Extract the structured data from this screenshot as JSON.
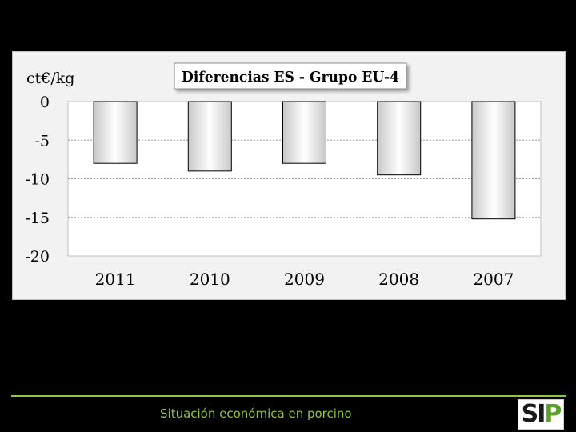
{
  "chart_data": {
    "type": "bar",
    "title": "Diferencias ES - Grupo EU-4",
    "ylabel": "ct€/kg",
    "categories": [
      "2011",
      "2010",
      "2009",
      "2008",
      "2007"
    ],
    "values": [
      -8,
      -9,
      -8,
      -9.5,
      -15.2
    ],
    "ylim": [
      -20,
      0
    ],
    "yticks": [
      "0",
      "-5",
      "-10",
      "-15",
      "-20"
    ],
    "grid": true
  },
  "footer": {
    "text": "Situación económica en porcino",
    "logo_text": "SIP"
  },
  "colors": {
    "background": "#000000",
    "panel": "#f2f2f2",
    "accent": "#8cc63f",
    "logo_green": "#5aa02c",
    "logo_dark": "#1a1a1a"
  }
}
